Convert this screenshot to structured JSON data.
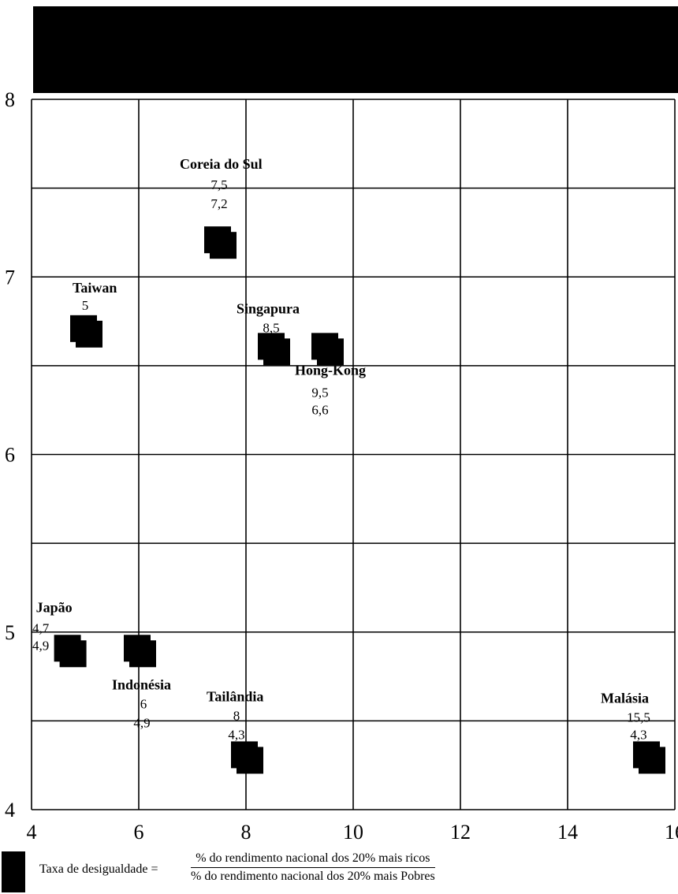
{
  "chart_data": {
    "type": "scatter",
    "xlim": [
      4,
      16
    ],
    "ylim": [
      4,
      8
    ],
    "x_ticks": [
      "4",
      "6",
      "8",
      "10",
      "12",
      "14",
      "16"
    ],
    "y_ticks": [
      "4",
      "5",
      "6",
      "7",
      "8"
    ],
    "grid": true,
    "marker_color": "#000000",
    "points": [
      {
        "name": "Coreia do Sul",
        "label_top": "7,5",
        "label_bottom": "7,2",
        "x": 7.5,
        "y": 7.2
      },
      {
        "name": "Taiwan",
        "label_top": "5",
        "label_bottom": "6,7",
        "x": 5,
        "y": 6.7
      },
      {
        "name": "Singapura",
        "label_top": "8,5",
        "label_bottom": "6,6",
        "x": 8.5,
        "y": 6.6
      },
      {
        "name": "Hong-Kong",
        "label_top": "9,5",
        "label_bottom": "6,6",
        "x": 9.5,
        "y": 6.6
      },
      {
        "name": "Japão",
        "label_top": "4,7",
        "label_bottom": "4,9",
        "x": 4.7,
        "y": 4.9
      },
      {
        "name": "Indonésia",
        "label_top": "6",
        "label_bottom": "4,9",
        "x": 6,
        "y": 4.9
      },
      {
        "name": "Tailândia",
        "label_top": "8",
        "label_bottom": "4,3",
        "x": 8,
        "y": 4.3
      },
      {
        "name": "Malásia",
        "label_top": "15,5",
        "label_bottom": "4,3",
        "x": 15.5,
        "y": 4.3
      }
    ]
  },
  "legend": {
    "prefix": "Taxa de desigualdade =",
    "numerator": "% do rendimento nacional dos 20% mais ricos",
    "denominator": "% do rendimento nacional dos 20% mais Pobres"
  }
}
